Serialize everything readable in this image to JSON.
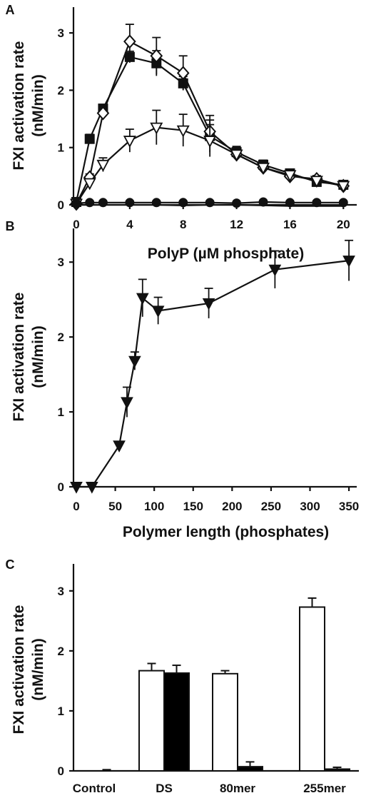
{
  "chart_data": [
    {
      "panel": "A",
      "type": "line",
      "xlabel": "PolyP (µM phosphate)",
      "ylabel": [
        "FXI activation rate",
        "(nM/min)"
      ],
      "xticks": [
        0,
        4,
        8,
        12,
        16,
        20
      ],
      "yticks": [
        0,
        1,
        2,
        3
      ],
      "xlim": [
        0,
        21
      ],
      "ylim": [
        0,
        3.45
      ],
      "grid": false,
      "series": [
        {
          "marker": "square-filled",
          "x": [
            0,
            1,
            2,
            4,
            6,
            8,
            10,
            12,
            14,
            16,
            18,
            20
          ],
          "y": [
            0.05,
            1.15,
            1.68,
            2.58,
            2.47,
            2.12,
            1.2,
            0.92,
            0.7,
            0.55,
            0.4,
            0.35
          ],
          "err": [
            0.05,
            0.08,
            0.06,
            0.1,
            0.22,
            0.12,
            0.28,
            0.1,
            0.08,
            0.07,
            0.06,
            0.06
          ]
        },
        {
          "marker": "diamond-open",
          "x": [
            0,
            1,
            2,
            4,
            6,
            8,
            10,
            12,
            14,
            16,
            18,
            20
          ],
          "y": [
            0.02,
            0.48,
            1.6,
            2.85,
            2.6,
            2.3,
            1.28,
            0.88,
            0.65,
            0.5,
            0.45,
            0.33
          ],
          "err": [
            0.03,
            0.06,
            0.08,
            0.3,
            0.32,
            0.3,
            0.28,
            0.1,
            0.08,
            0.07,
            0.06,
            0.05
          ]
        },
        {
          "marker": "triangle-down-open",
          "x": [
            0,
            1,
            2,
            4,
            6,
            8,
            10,
            12,
            14,
            16,
            18,
            20
          ],
          "y": [
            0.02,
            0.38,
            0.7,
            1.12,
            1.35,
            1.3,
            1.12,
            0.88,
            0.65,
            0.52,
            0.42,
            0.33
          ],
          "err": [
            0.03,
            0.05,
            0.12,
            0.2,
            0.3,
            0.28,
            0.28,
            0.12,
            0.08,
            0.07,
            0.06,
            0.05
          ]
        },
        {
          "marker": "circle-filled",
          "x": [
            0,
            1,
            2,
            4,
            6,
            8,
            10,
            12,
            14,
            16,
            18,
            20
          ],
          "y": [
            0.03,
            0.04,
            0.04,
            0.04,
            0.04,
            0.04,
            0.04,
            0.03,
            0.05,
            0.04,
            0.04,
            0.04
          ],
          "err": [
            0.02,
            0.02,
            0.02,
            0.02,
            0.02,
            0.02,
            0.02,
            0.02,
            0.02,
            0.02,
            0.02,
            0.02
          ]
        },
        {
          "marker": "line-only",
          "x": [
            0,
            2,
            4,
            6,
            8,
            10,
            12,
            14,
            16,
            18,
            20
          ],
          "y": [
            0.0,
            0.0,
            0.0,
            0.0,
            -0.01,
            0.0,
            0.0,
            -0.01,
            -0.02,
            -0.02,
            -0.02
          ],
          "err": []
        }
      ]
    },
    {
      "panel": "B",
      "type": "line",
      "xlabel": "Polymer length (phosphates)",
      "ylabel": [
        "FXI activation rate",
        "(nM/min)"
      ],
      "xticks": [
        0,
        50,
        100,
        150,
        200,
        250,
        300,
        350
      ],
      "yticks": [
        0,
        1,
        2,
        3
      ],
      "xlim": [
        0,
        360
      ],
      "ylim": [
        0,
        3.45
      ],
      "grid": false,
      "series": [
        {
          "marker": "triangle-down-filled",
          "x": [
            0,
            20,
            55,
            65,
            75,
            85,
            105,
            170,
            255,
            350
          ],
          "y": [
            0.0,
            0.0,
            0.55,
            1.13,
            1.68,
            2.52,
            2.35,
            2.45,
            2.9,
            3.02
          ],
          "err": [
            0.0,
            0.0,
            0.05,
            0.2,
            0.12,
            0.25,
            0.18,
            0.2,
            0.25,
            0.27
          ]
        }
      ]
    },
    {
      "panel": "C",
      "type": "bar",
      "ylabel": [
        "FXI activation rate",
        "(nM/min)"
      ],
      "categories": [
        "Control",
        "DS",
        "80mer",
        "255mer"
      ],
      "yticks": [
        0,
        1,
        2,
        3
      ],
      "ylim": [
        0,
        3.45
      ],
      "grid": false,
      "series": [
        {
          "fill": "white",
          "values": [
            0.0,
            1.67,
            1.62,
            2.73
          ],
          "err": [
            0.0,
            0.12,
            0.05,
            0.15
          ]
        },
        {
          "fill": "black",
          "values": [
            0.0,
            1.63,
            0.07,
            0.03
          ],
          "err": [
            0.02,
            0.13,
            0.08,
            0.03
          ]
        }
      ]
    }
  ]
}
